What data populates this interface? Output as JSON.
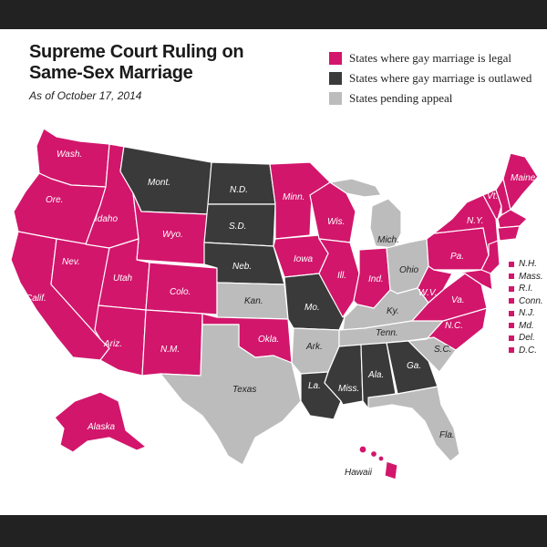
{
  "header": {
    "title_line1": "Supreme Court Ruling on",
    "title_line2": "Same-Sex Marriage",
    "subtitle": "As of October 17, 2014"
  },
  "legend": {
    "legal": "States where gay marriage is legal",
    "outlawed": "States where gay marriage is outlawed",
    "pending": "States pending appeal"
  },
  "colors": {
    "legal": "#d2166c",
    "outlawed": "#3a3a3a",
    "pending": "#bcbcbc",
    "bars": "#222222"
  },
  "states": {
    "wa": "Wash.",
    "or": "Ore.",
    "ca": "Calif.",
    "nv": "Nev.",
    "id": "Idaho",
    "mt": "Mont.",
    "wy": "Wyo.",
    "ut": "Utah",
    "az": "Ariz.",
    "co": "Colo.",
    "nm": "N.M.",
    "nd": "N.D.",
    "sd": "S.D.",
    "ne": "Neb.",
    "ks": "Kan.",
    "ok": "Okla.",
    "tx": "Texas",
    "mn": "Minn.",
    "ia": "Iowa",
    "mo": "Mo.",
    "ar": "Ark.",
    "la": "La.",
    "wi": "Wis.",
    "il": "Ill.",
    "mi": "Mich.",
    "in": "Ind.",
    "oh": "Ohio",
    "ky": "Ky.",
    "tn": "Tenn.",
    "ms": "Miss.",
    "al": "Ala.",
    "ga": "Ga.",
    "fl": "Fla.",
    "sc": "S.C.",
    "nc": "N.C.",
    "va": "Va.",
    "wv": "W.V.",
    "pa": "Pa.",
    "ny": "N.Y.",
    "vt": "Vt.",
    "me": "Maine",
    "ak": "Alaska",
    "hi": "Hawaii"
  },
  "small_states": [
    "N.H.",
    "Mass.",
    "R.I.",
    "Conn.",
    "N.J.",
    "Md.",
    "Del.",
    "D.C."
  ]
}
